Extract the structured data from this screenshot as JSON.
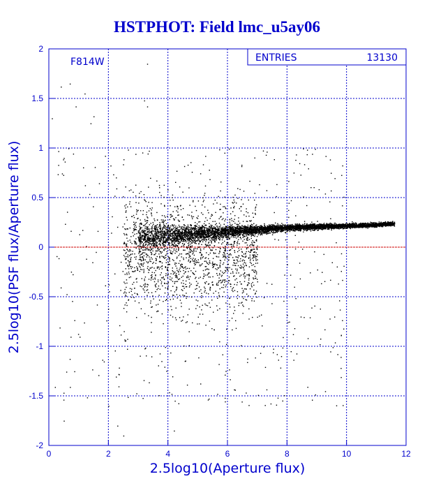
{
  "colors": {
    "accent": "#0000cc",
    "grid": "#0000cc",
    "points": "#000000",
    "zero_line": "#cc0000"
  },
  "chart_data": {
    "type": "scatter",
    "title": "HSTPHOT: Field lmc_u5ay06",
    "xlabel": "2.5log10(Aperture flux)",
    "ylabel": "2.5log10(PSF flux/Aperture flux)",
    "xlim": [
      0,
      12
    ],
    "ylim": [
      -2,
      2
    ],
    "xticks": [
      0,
      2,
      4,
      6,
      8,
      10,
      12
    ],
    "yticks": [
      -2,
      -1.5,
      -1,
      -0.5,
      0,
      0.5,
      1,
      1.5,
      2
    ],
    "grid": true,
    "reference_line_y": 0,
    "filter_label": "F814W",
    "stats": {
      "label": "ENTRIES",
      "value": "13130"
    },
    "distribution": {
      "description_points": [
        {
          "x": 3.3,
          "y": 1.85
        },
        {
          "x": 0.4,
          "y": 1.62
        },
        {
          "x": 0.7,
          "y": 1.65
        },
        {
          "x": 1.2,
          "y": 1.55
        },
        {
          "x": 0.9,
          "y": 1.42
        },
        {
          "x": 3.2,
          "y": 1.48
        },
        {
          "x": 3.3,
          "y": 1.42
        },
        {
          "x": 1.5,
          "y": 1.32
        },
        {
          "x": 0.1,
          "y": 1.3
        },
        {
          "x": 1.4,
          "y": 1.25
        },
        {
          "x": 0.5,
          "y": 0.9
        },
        {
          "x": 4.2,
          "y": -1.85
        },
        {
          "x": 2.5,
          "y": -1.9
        },
        {
          "x": 0.5,
          "y": -1.75
        },
        {
          "x": 2.3,
          "y": -1.8
        },
        {
          "x": 2.0,
          "y": -1.6
        }
      ],
      "locus": [
        {
          "x": 3.0,
          "y": 0.1
        },
        {
          "x": 4.0,
          "y": 0.12
        },
        {
          "x": 5.0,
          "y": 0.14
        },
        {
          "x": 6.0,
          "y": 0.16
        },
        {
          "x": 7.0,
          "y": 0.18
        },
        {
          "x": 8.0,
          "y": 0.2
        },
        {
          "x": 9.0,
          "y": 0.21
        },
        {
          "x": 10.0,
          "y": 0.22
        },
        {
          "x": 11.0,
          "y": 0.23
        },
        {
          "x": 11.5,
          "y": 0.24
        }
      ]
    }
  }
}
